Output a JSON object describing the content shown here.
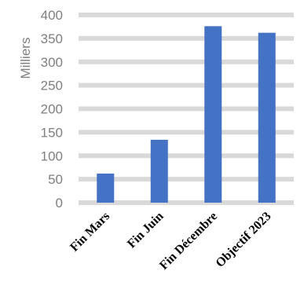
{
  "chart_data": {
    "type": "bar",
    "title": "",
    "xlabel": "",
    "ylabel": "Milliers",
    "categories": [
      "Fin Mars",
      "Fin Juin",
      "Fin Décembre",
      "Objectif 2023"
    ],
    "values": [
      62,
      134,
      376,
      362
    ],
    "ylim": [
      0,
      400
    ],
    "yticks": [
      0,
      50,
      100,
      150,
      200,
      250,
      300,
      350,
      400
    ],
    "grid": true,
    "legend": "none",
    "colors": {
      "bar": "#4472c4",
      "grid": "#d9d9d9",
      "tick_text": "#7f7f7f"
    }
  }
}
